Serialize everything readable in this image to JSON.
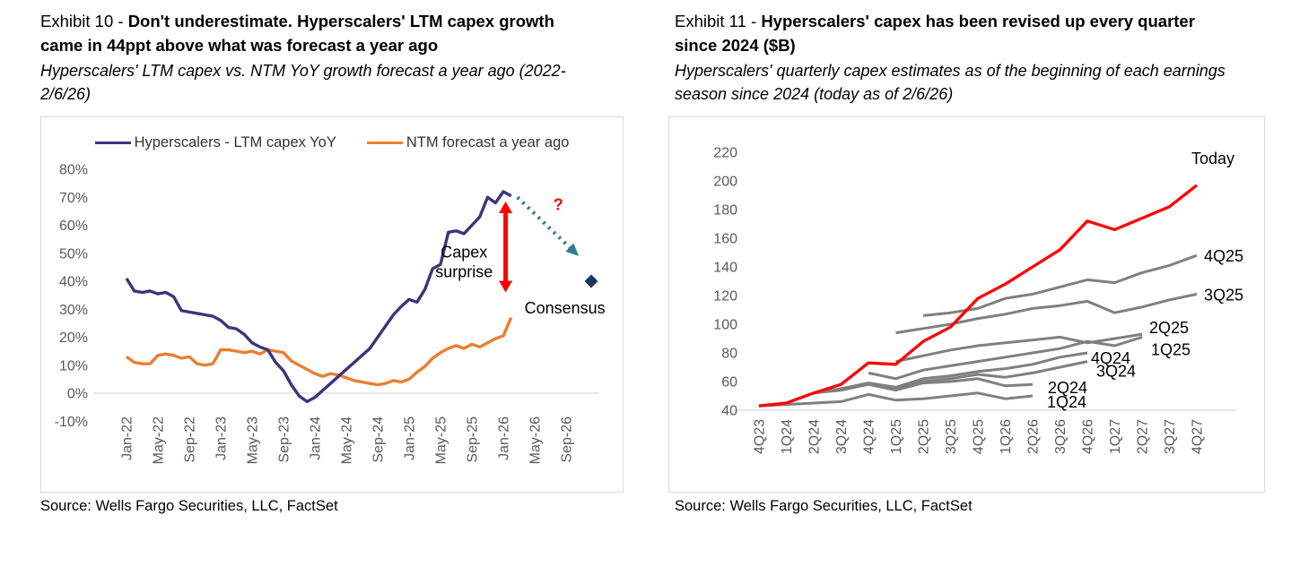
{
  "panels": [
    {
      "exhibit_label": "Exhibit 10 - ",
      "title_bold": "Don't underestimate. Hyperscalers' LTM capex growth came in 44ppt above what was forecast a year ago",
      "subtitle": "Hyperscalers' LTM capex vs. NTM YoY growth forecast a year ago (2022-2/6/26)",
      "source": "Source: Wells Fargo Securities, LLC, FactSet"
    },
    {
      "exhibit_label": "Exhibit 11 - ",
      "title_bold": "Hyperscalers' capex has been revised up every quarter since 2024 ($B)",
      "subtitle": "Hyperscalers' quarterly capex estimates as of the beginning of each earnings season since 2024 (today as of 2/6/26)",
      "source": "Source: Wells Fargo Securities, LLC, FactSet"
    }
  ],
  "chart_data": [
    {
      "type": "line",
      "title": "Hyperscalers' LTM capex vs. NTM YoY growth forecast a year ago (2022-2/6/26)",
      "x_tick_labels": [
        "Jan-22",
        "May-22",
        "Sep-22",
        "Jan-23",
        "May-23",
        "Sep-23",
        "Jan-24",
        "May-24",
        "Sep-24",
        "Jan-25",
        "May-25",
        "Sep-25",
        "Jan-26",
        "May-26",
        "Sep-26"
      ],
      "x_tick_interval_months": 4,
      "ylim": [
        -10,
        80
      ],
      "y_ticks": [
        80,
        70,
        60,
        50,
        40,
        30,
        20,
        10,
        0,
        -10
      ],
      "y_suffix": "%",
      "grid": "zero-line-only",
      "legend_position": "top",
      "series": [
        {
          "name": "Hyperscalers - LTM capex YoY",
          "color": "#3B347C",
          "start_month": 0,
          "values": [
            41,
            36.5,
            36,
            36.5,
            35.5,
            36,
            34.5,
            29.5,
            29,
            28.5,
            28,
            27.5,
            26,
            23.5,
            23,
            21,
            18,
            16.5,
            15.5,
            11,
            8,
            3,
            -1,
            -3,
            -1.5,
            1,
            3.5,
            6,
            8.5,
            11,
            13.5,
            16,
            20,
            24,
            28,
            31,
            33.5,
            32.5,
            37,
            44.5,
            46,
            57.5,
            58,
            57,
            60,
            63,
            70,
            68,
            72,
            70.5
          ]
        },
        {
          "name": "NTM forecast a year ago",
          "color": "#ED7D31",
          "start_month": 0,
          "values": [
            13,
            11,
            10.5,
            10.5,
            13.5,
            14,
            13.5,
            12.5,
            13,
            10.5,
            10,
            10.5,
            15.5,
            15.5,
            15,
            14.5,
            15,
            14,
            15.5,
            15,
            14.5,
            11.5,
            10,
            8.5,
            7,
            6,
            7,
            6.5,
            5.5,
            4.5,
            4,
            3.5,
            3,
            3.5,
            4.5,
            4,
            5,
            7.5,
            9.5,
            12.5,
            14.5,
            16,
            17,
            16,
            17.5,
            16.5,
            18,
            19.5,
            20.5,
            27
          ]
        }
      ],
      "annotations": [
        {
          "id": "capex-surprise",
          "lines": [
            "Capex",
            "surprise"
          ],
          "month": 43,
          "value": 48.5,
          "anchor": "middle",
          "color": "#000000",
          "bold": false
        },
        {
          "id": "question-mark",
          "lines": [
            "?"
          ],
          "month": 55,
          "value": 65.5,
          "anchor": "middle",
          "color": "#FF0000",
          "bold": true
        },
        {
          "id": "consensus",
          "lines": [
            "Consensus"
          ],
          "month": 50.7,
          "value": 28.5,
          "anchor": "start",
          "color": "#000000",
          "bold": false
        }
      ],
      "projection_arrow": {
        "from_month": 49.8,
        "from_value": 70,
        "to_month": 57.6,
        "to_value": 49,
        "color": "#2E7D95"
      },
      "surprise_arrow": {
        "month": 48.3,
        "top_value": 68.5,
        "bottom_value": 36,
        "color": "#FF0000"
      },
      "consensus_marker": {
        "shape": "diamond",
        "month": 59.2,
        "value": 40,
        "color": "#17375E"
      }
    },
    {
      "type": "line",
      "title": "Hyperscalers' quarterly capex estimates ($B)",
      "categories": [
        "4Q23",
        "1Q24",
        "2Q24",
        "3Q24",
        "4Q24",
        "1Q25",
        "2Q25",
        "3Q25",
        "4Q25",
        "1Q26",
        "2Q26",
        "3Q26",
        "4Q26",
        "1Q27",
        "2Q27",
        "3Q27",
        "4Q27"
      ],
      "ylim": [
        40,
        220
      ],
      "y_ticks": [
        220,
        200,
        180,
        160,
        140,
        120,
        100,
        80,
        60,
        40
      ],
      "grid": "baseline-only",
      "series": [
        {
          "name": "Today",
          "color": "#FF0000",
          "start_index": 0,
          "values": [
            43,
            45,
            52,
            58,
            73,
            72,
            88,
            98,
            118,
            128,
            140,
            152,
            172,
            166,
            174,
            182,
            197
          ]
        },
        {
          "name": "4Q25",
          "color": "#7F7F7F",
          "start_index": 6,
          "values": [
            106,
            108,
            111,
            118,
            121,
            126,
            131,
            129,
            136,
            141,
            148
          ]
        },
        {
          "name": "3Q25",
          "color": "#7F7F7F",
          "start_index": 5,
          "values": [
            94,
            97,
            100,
            104,
            107,
            111,
            113,
            116,
            108,
            112,
            117,
            121
          ]
        },
        {
          "name": "2Q25",
          "color": "#7F7F7F",
          "start_index": 5,
          "values": [
            74,
            78,
            82,
            85,
            87,
            89,
            91,
            87,
            90,
            93
          ]
        },
        {
          "name": "1Q25",
          "color": "#7F7F7F",
          "start_index": 4,
          "values": [
            66,
            62,
            68,
            71,
            74,
            77,
            80,
            83,
            88,
            85,
            91
          ]
        },
        {
          "name": "4Q24",
          "color": "#7F7F7F",
          "start_index": 3,
          "values": [
            55,
            59,
            56,
            62,
            64,
            67,
            69,
            72,
            77,
            80
          ]
        },
        {
          "name": "3Q24",
          "color": "#7F7F7F",
          "start_index": 2,
          "values": [
            52,
            55,
            58,
            55,
            60,
            62,
            65,
            63,
            66,
            70,
            74
          ]
        },
        {
          "name": "2Q24",
          "color": "#7F7F7F",
          "start_index": 1,
          "values": [
            45,
            52,
            54,
            58,
            54,
            59,
            60,
            62,
            57,
            58
          ]
        },
        {
          "name": "1Q24",
          "color": "#7F7F7F",
          "start_index": 0,
          "values": [
            43,
            44,
            45,
            46,
            51,
            47,
            48,
            50,
            52,
            48,
            50
          ]
        }
      ]
    }
  ]
}
